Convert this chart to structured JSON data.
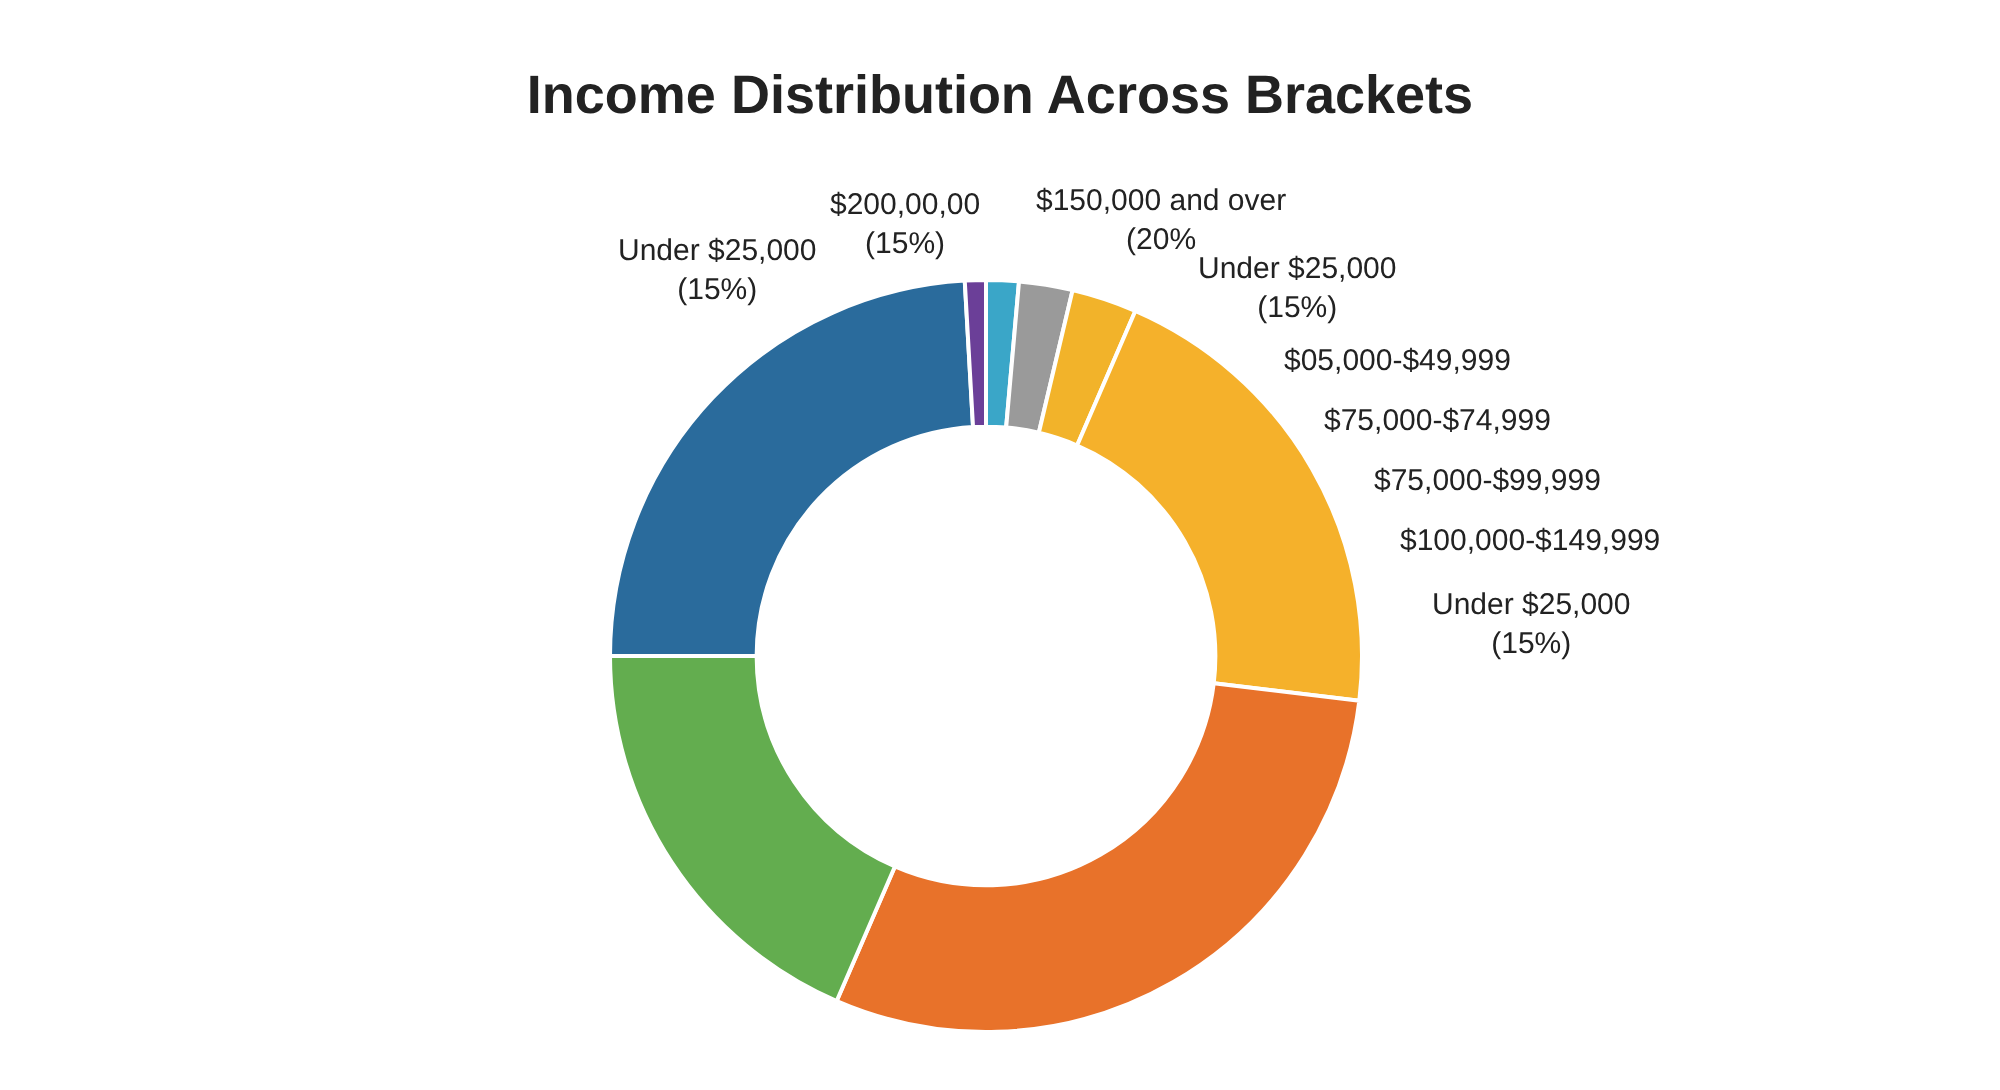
{
  "chart_data": {
    "type": "donut",
    "title": "Income Distribution Across Brackets",
    "categories": [
      null,
      null,
      null,
      null,
      null,
      null,
      null,
      null
    ],
    "values": [
      1.4,
      2.3,
      2.8,
      20.4,
      29.6,
      18.5,
      24.1,
      0.9
    ],
    "colors": [
      "#3aa6c8",
      "#9a9a9a",
      "#f2b32a",
      "#f5b12b",
      "#e8722a",
      "#63ad4f",
      "#2a6b9c",
      "#6b3f98"
    ],
    "annotations": [
      "Under $25,000\n(15%)",
      "$200,00,00\n(15%)",
      "$150,000 and over\n(20%",
      "Under $25,000\n(15%)",
      "$05,000-$49,999",
      "$75,000-$74,999",
      "$75,000-$99,999",
      "$100,000-$149,999",
      "Under $25,000\n(15%)"
    ]
  }
}
